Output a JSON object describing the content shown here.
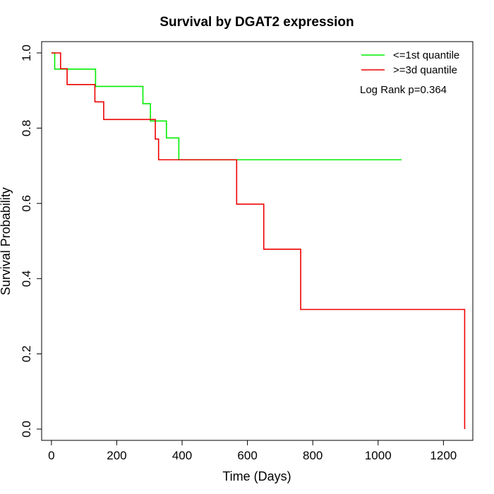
{
  "chart_data": {
    "type": "line",
    "title": "Survival by DGAT2 expression",
    "xlabel": "Time (Days)",
    "ylabel": "Survival Probability",
    "xlim": [
      -30,
      1290
    ],
    "ylim": [
      -0.03,
      1.03
    ],
    "xticks": [
      0,
      200,
      400,
      600,
      800,
      1000,
      1200
    ],
    "yticks": [
      0.0,
      0.2,
      0.4,
      0.6,
      0.8,
      1.0
    ],
    "xtick_labels": [
      "0",
      "200",
      "400",
      "600",
      "800",
      "1000",
      "1200"
    ],
    "ytick_labels": [
      "0.0",
      "0.2",
      "0.4",
      "0.6",
      "0.8",
      "1.0"
    ],
    "grid": false,
    "legend_position": "top-right",
    "annotation": "Log Rank p=0.364",
    "series": [
      {
        "name": "<=1st quantile",
        "color": "#00ee00",
        "step": "post",
        "x": [
          0,
          10,
          135,
          280,
          303,
          352,
          390,
          1072
        ],
        "y": [
          1.0,
          0.957,
          0.911,
          0.865,
          0.819,
          0.774,
          0.716,
          0.716
        ]
      },
      {
        "name": ">=3d quantile",
        "color": "#ee0000",
        "step": "post",
        "x": [
          0,
          28,
          48,
          133,
          160,
          318,
          328,
          567,
          650,
          763,
          1265
        ],
        "y": [
          1.0,
          0.958,
          0.916,
          0.87,
          0.823,
          0.771,
          0.716,
          0.598,
          0.478,
          0.318,
          0.0
        ]
      }
    ]
  }
}
